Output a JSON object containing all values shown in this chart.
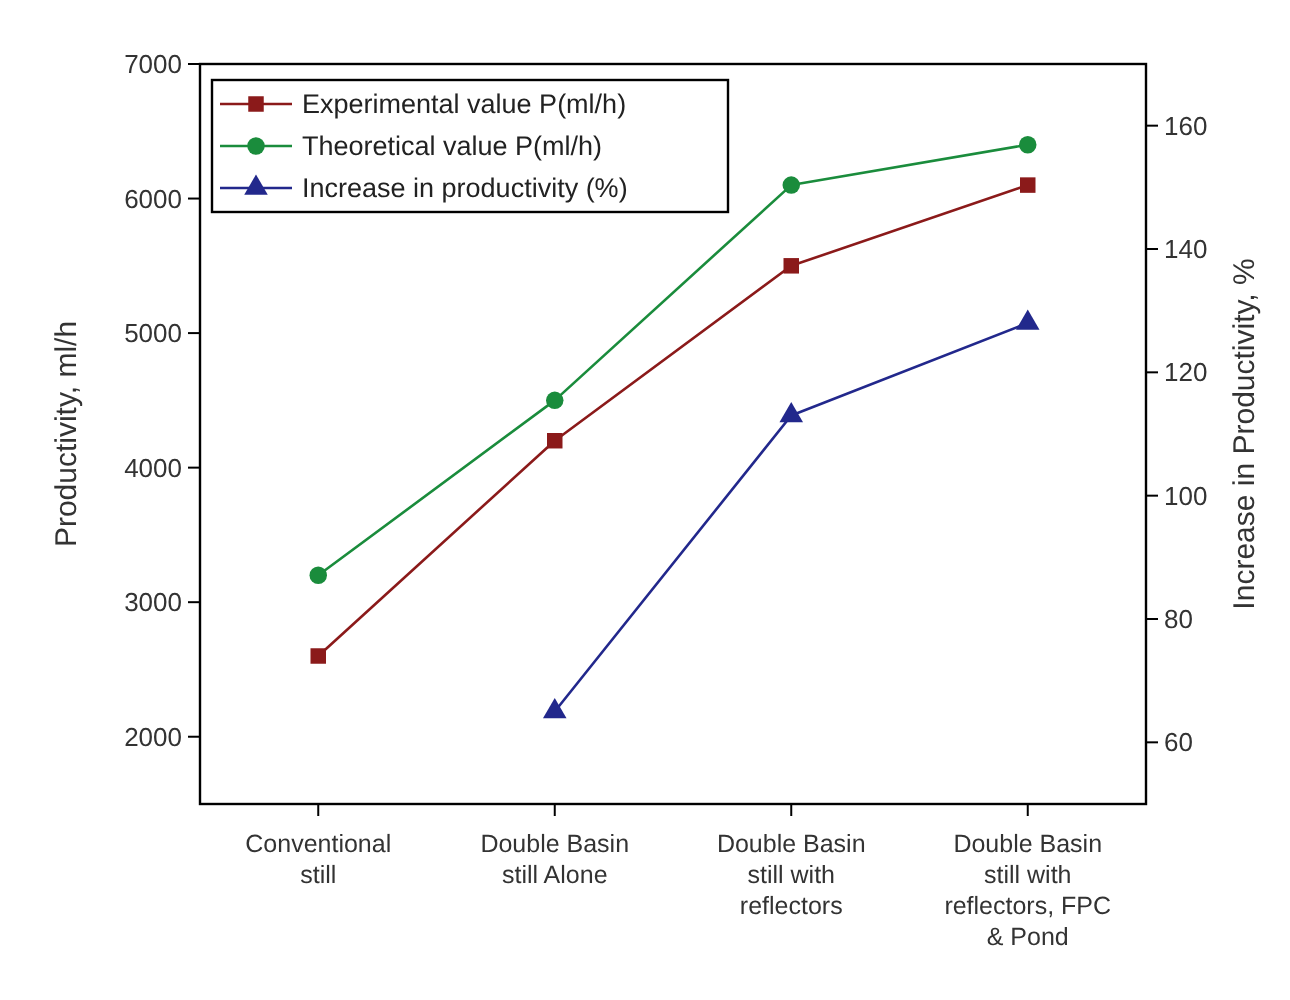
{
  "chart_data": {
    "type": "line",
    "xlabel": null,
    "ylabel": "Productivity, ml/h",
    "y2label": "Increase in Productivity, %",
    "categories": [
      "Conventional\nstill",
      "Double Basin\nstill Alone",
      "Double Basin\nstill with\nreflectors",
      "Double Basin\nstill with\nreflectors, FPC\n& Pond"
    ],
    "series": [
      {
        "name": "Experimental value P(ml/h)",
        "color": "#8b1a1a",
        "marker": "square",
        "values": [
          2600,
          4200,
          5500,
          6100
        ]
      },
      {
        "name": "Theoretical value P(ml/h)",
        "color": "#1a8c3c",
        "marker": "circle",
        "values": [
          3200,
          4500,
          6100,
          6400
        ]
      },
      {
        "name": "Increase in productivity (%)",
        "color": "#22288c",
        "marker": "triangle",
        "axis": "y2",
        "values": [
          null,
          65,
          113,
          128
        ]
      }
    ],
    "ylim": [
      1500,
      7000
    ],
    "yticks": [
      2000,
      3000,
      4000,
      5000,
      6000,
      7000
    ],
    "y2lim": [
      50,
      170
    ],
    "y2ticks": [
      60,
      80,
      100,
      120,
      140,
      160
    ],
    "legend": "top left",
    "grid": false
  }
}
